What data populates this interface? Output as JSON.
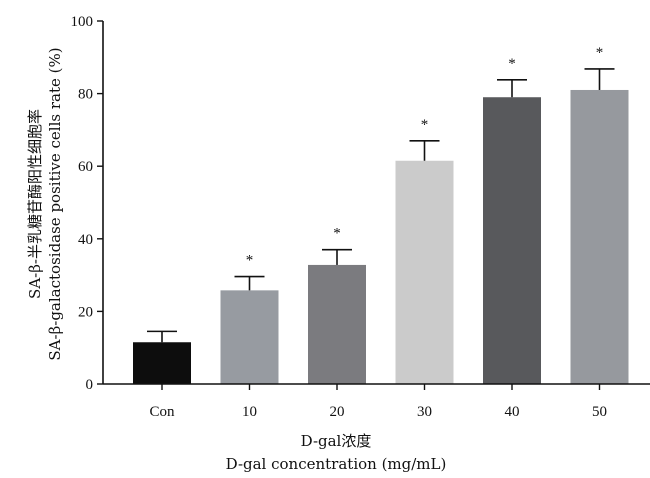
{
  "chart_data": {
    "type": "bar",
    "categories": [
      "Con",
      "10",
      "20",
      "30",
      "40",
      "50"
    ],
    "values": [
      11.5,
      25.8,
      32.8,
      61.5,
      79.0,
      81.0
    ],
    "errors": [
      3.0,
      3.8,
      4.2,
      5.5,
      4.8,
      5.8
    ],
    "significance": [
      "",
      "*",
      "*",
      "*",
      "*",
      "*"
    ],
    "colors": [
      "#0d0d0d",
      "#979ba1",
      "#7b7b7f",
      "#cbcbcb",
      "#58595c",
      "#96999e"
    ],
    "ylim": [
      0,
      100
    ],
    "yticks": [
      0,
      20,
      40,
      60,
      80,
      100
    ],
    "ylabel_line1": "SA-β-半乳糖苷酶阳性细胞率",
    "ylabel_line2": "SA-β-galactosidase positive cells rate (%)",
    "xlabel_line1": "D-gal浓度",
    "xlabel_line2": "D-gal concentration (mg/mL)"
  }
}
